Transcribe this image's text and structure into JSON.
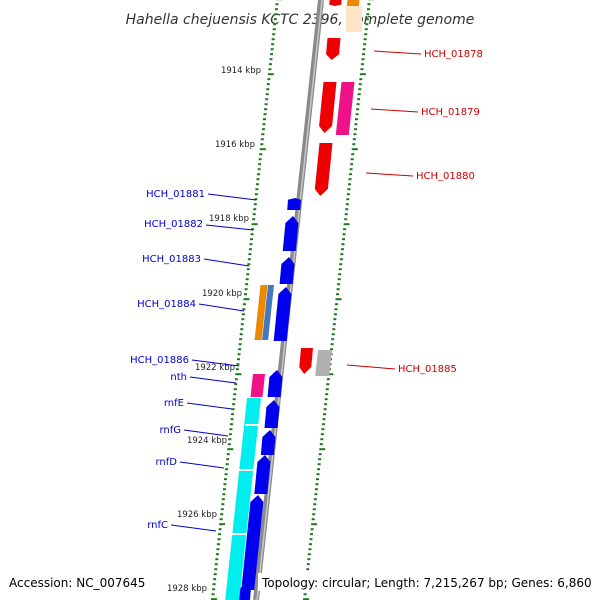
{
  "title": "Hahella chejuensis KCTC 2396, complete genome",
  "footer": {
    "accession": "Accession: NC_007645",
    "topology": "Topology: circular; Length: 7,215,267 bp; Genes: 6,860"
  },
  "scale_labels": [
    "1914 kbp",
    "1916 kbp",
    "1918 kbp",
    "1920 kbp",
    "1922 kbp",
    "1924 kbp",
    "1926 kbp",
    "1928 kbp"
  ],
  "gene_labels_left": [
    "HCH_01881",
    "HCH_01882",
    "HCH_01883",
    "HCH_01884",
    "HCH_01886",
    "nth",
    "rnfE",
    "rnfG",
    "rnfD",
    "rnfC"
  ],
  "gene_labels_right": [
    "HCH_01878",
    "HCH_01879",
    "HCH_01880",
    "HCH_01885"
  ],
  "colors": {
    "left_label": "#0000cc",
    "right_label": "#cc0000",
    "backbone": "#808080",
    "tick": "#1a7a1a",
    "forward_gene": "#0000ee",
    "reverse_gene": "#ee0000",
    "magenta_gene": "#ee1188",
    "cyan_gene": "#00eeee",
    "orange_gene": "#ee8800",
    "steel_gene": "#4477bb",
    "gray_gene": "#b0b0b0"
  }
}
